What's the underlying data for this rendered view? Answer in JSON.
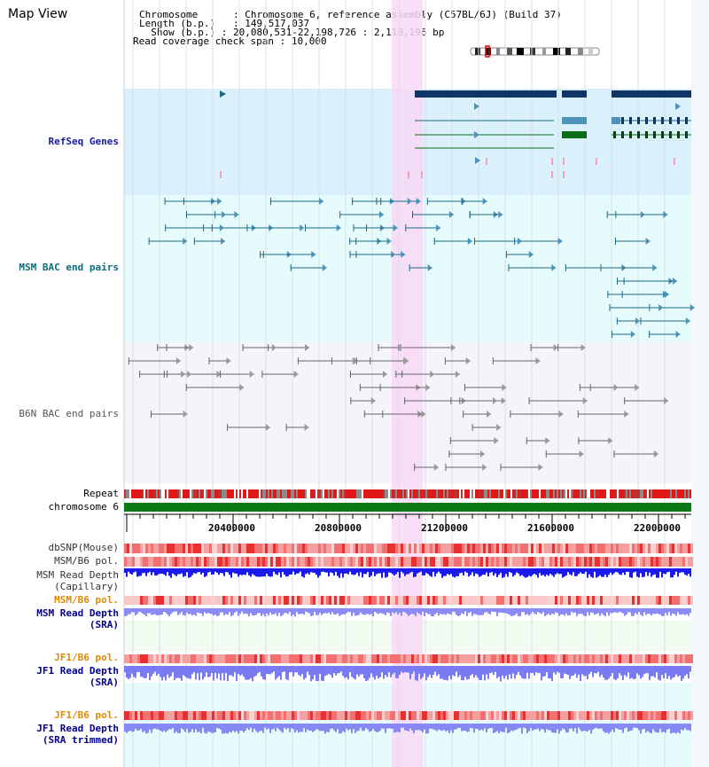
{
  "window_title": "Map View",
  "header": {
    "chromosome_key": "Chromosome",
    "chromosome_val": "Chromosome 6, reference assembly (C57BL/6J) (Build 37)",
    "length_key": "Length (b.p.)",
    "length_val": "149,517,037",
    "show_key": "Show (b.p.)",
    "show_val": "20,080,531-22,198,726 : 2,118,196 bp",
    "coverage_key": "Read coverage check span",
    "coverage_val": "10,000"
  },
  "tracks": {
    "refseq": "RefSeq Genes",
    "msm_bac": "MSM BAC end pairs",
    "b6n_bac": "B6N BAC end pairs",
    "repeat": "Repeat",
    "chromosome": "chromosome 6",
    "dbsnp": "dbSNP(Mouse)",
    "msm_b6_pol_cap": "MSM/B6 pol.",
    "msm_depth_cap_1": "MSM Read Depth",
    "msm_depth_cap_2": "(Capillary)",
    "msm_b6_pol_sra": "MSM/B6 pol.",
    "msm_depth_sra_1": "MSM Read Depth",
    "msm_depth_sra_2": "(SRA)",
    "jf1_b6_pol_sra": "JF1/B6 pol.",
    "jf1_depth_sra_1": "JF1 Read Depth",
    "jf1_depth_sra_2": "(SRA)",
    "jf1_b6_pol_trim": "JF1/B6 pol.",
    "jf1_depth_trim_1": "JF1 Read Depth",
    "jf1_depth_trim_2": "(SRA trimmed)"
  },
  "ruler": {
    "labels": [
      "20400000",
      "20800000",
      "21200000",
      "21600000",
      "22000000"
    ]
  },
  "colors": {
    "refseq_bg": "#daf1fb",
    "msm_bac_bg": "#e6fbfb",
    "b6n_bac_bg": "#f4f4fa",
    "highlight": "#f7d8f5",
    "gene_dark": "#0e3566",
    "gene_green": "#0b6b18",
    "chromosome_bar": "#0b7a15",
    "depth_blue": "#1a1af0",
    "depth_light": "#8b8bf5",
    "pol_red": "#f05050"
  }
}
